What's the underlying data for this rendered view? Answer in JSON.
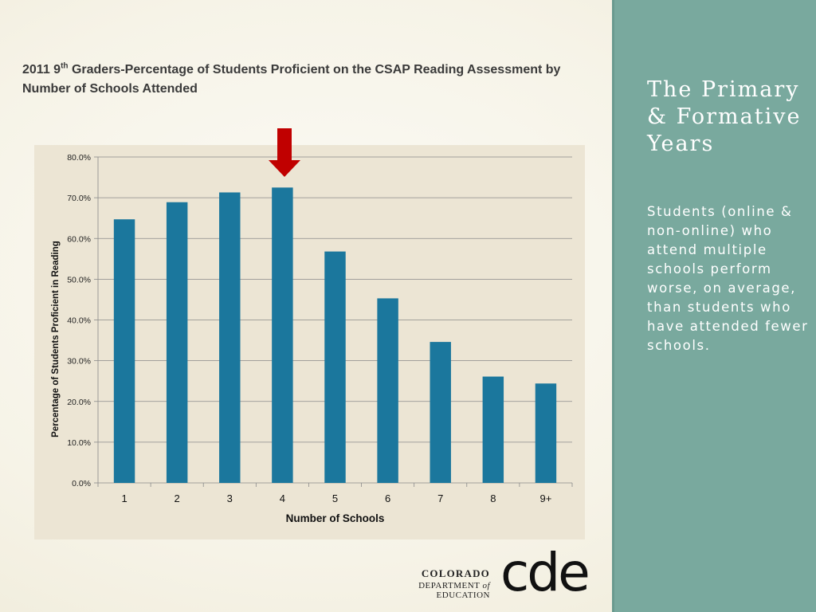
{
  "slide": {
    "chart_title_part1": "2011 9",
    "chart_title_sup": "th",
    "chart_title_part2": " Graders-Percentage of Students Proficient on the CSAP Reading Assessment by Number of Schools Attended",
    "panel_title": "The Primary & Formative Years",
    "panel_body": "Students (online & non-online) who attend multiple schools perform worse, on average, than students who have attended fewer schools.",
    "logo_line1": "COLORADO",
    "logo_line2_a": "DEPARTMENT ",
    "logo_line2_b": "of",
    "logo_line2_c": " EDUCATION",
    "logo_mark": "cde",
    "colors": {
      "bar": "#1b779d",
      "arrow": "#c00000",
      "panel": "#79a99e",
      "plot_background": "#ece5d4"
    }
  },
  "chart_data": {
    "type": "bar",
    "categories": [
      "1",
      "2",
      "3",
      "4",
      "5",
      "6",
      "7",
      "8",
      "9+"
    ],
    "values": [
      64.7,
      68.9,
      71.3,
      72.5,
      56.8,
      45.3,
      34.6,
      26.1,
      24.4
    ],
    "ylim": [
      0,
      80
    ],
    "yticks": [
      "0.0%",
      "10.0%",
      "20.0%",
      "30.0%",
      "40.0%",
      "50.0%",
      "60.0%",
      "70.0%",
      "80.0%"
    ],
    "xlabel": "Number of Schools",
    "ylabel": "Percentage of Students Proficient in Reading",
    "grid": true,
    "highlight_category": "4",
    "highlight_marker": "red-down-arrow"
  }
}
